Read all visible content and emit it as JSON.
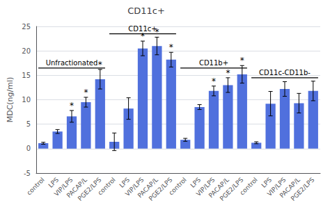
{
  "chart_data": {
    "type": "bar",
    "title": "CD11c+",
    "ylabel": "MDC(ng/ml)",
    "ylim": [
      -5,
      25
    ],
    "yticks": [
      -5,
      0,
      5,
      10,
      15,
      20,
      25
    ],
    "star_text": "*",
    "groups": [
      {
        "label": "Unfractionated",
        "bracket_y": 16.5,
        "categories": [
          "control",
          "LPS",
          "VIP/LPS",
          "PACAP/L",
          "PGE2/LPS"
        ],
        "values": [
          1.1,
          3.5,
          6.6,
          9.5,
          14.2
        ],
        "errors": [
          0.2,
          0.4,
          1.2,
          1.0,
          2.0
        ],
        "stars": [
          false,
          false,
          true,
          true,
          true
        ]
      },
      {
        "label": "CD11c+",
        "bracket_y": 23.5,
        "categories": [
          "control",
          "LPS",
          "VIP/LPS",
          "PACAP/L",
          "PGE2/LPS"
        ],
        "values": [
          1.4,
          8.2,
          20.5,
          21.0,
          18.2
        ],
        "errors": [
          1.8,
          2.2,
          1.5,
          1.8,
          1.5
        ],
        "stars": [
          false,
          false,
          true,
          true,
          true
        ]
      },
      {
        "label": "CD11b+",
        "bracket_y": 16.5,
        "categories": [
          "control",
          "LPS",
          "VIP/LPS",
          "PACAP/L",
          "PGE2/LPS"
        ],
        "values": [
          1.8,
          8.5,
          11.8,
          13.0,
          15.2
        ],
        "errors": [
          0.3,
          0.5,
          1.0,
          1.5,
          1.8
        ],
        "stars": [
          false,
          false,
          true,
          true,
          true
        ]
      },
      {
        "label": "CD11c-CD11b-",
        "bracket_y": 14.5,
        "categories": [
          "control",
          "LPS",
          "VIP/LPS",
          "PACAP/L",
          "PGE2/LPS"
        ],
        "values": [
          1.2,
          9.2,
          12.2,
          9.3,
          11.8
        ],
        "errors": [
          0.2,
          2.5,
          1.5,
          2.0,
          2.0
        ],
        "stars": [
          false,
          false,
          false,
          false,
          false
        ]
      }
    ]
  }
}
